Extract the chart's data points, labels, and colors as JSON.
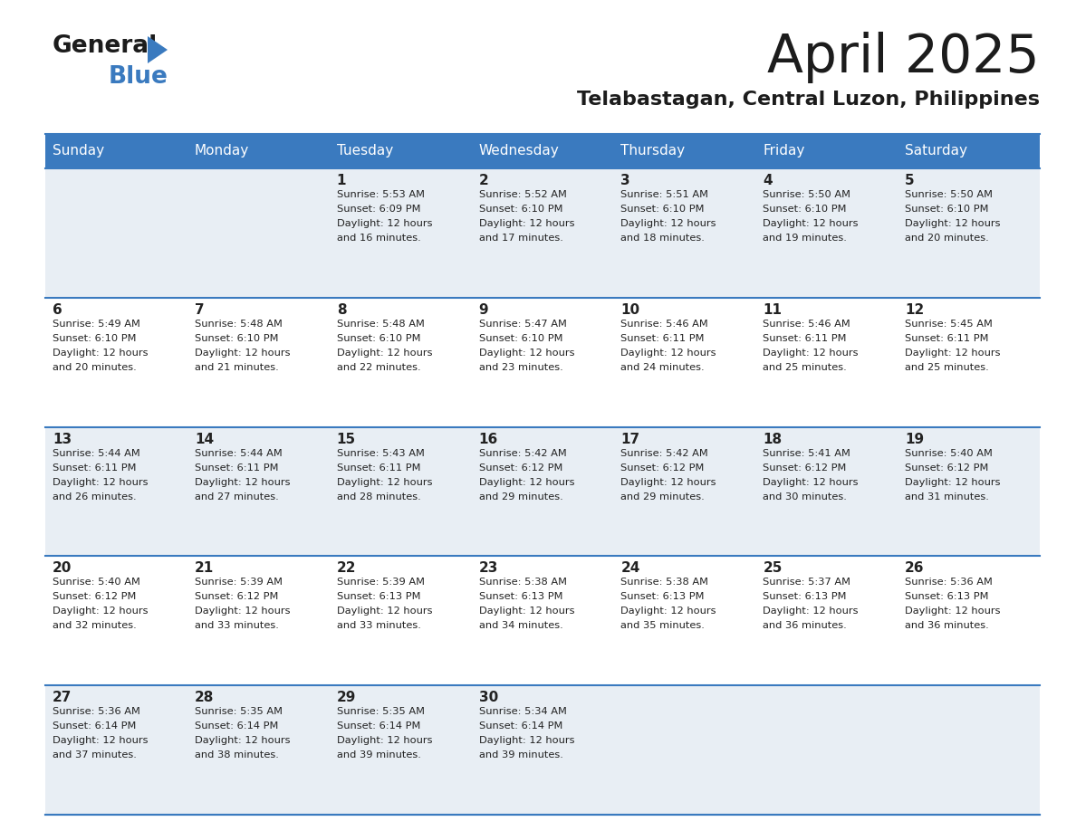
{
  "title": "April 2025",
  "subtitle": "Telabastagan, Central Luzon, Philippines",
  "header_color": "#3a7abf",
  "header_text_color": "#ffffff",
  "bg_color": "#ffffff",
  "cell_bg_even": "#e8eef4",
  "cell_bg_odd": "#ffffff",
  "grid_line_color": "#3a7abf",
  "text_color": "#222222",
  "days_of_week": [
    "Sunday",
    "Monday",
    "Tuesday",
    "Wednesday",
    "Thursday",
    "Friday",
    "Saturday"
  ],
  "weeks": [
    [
      {
        "day": "",
        "sunrise": "",
        "sunset": "",
        "daylight": ""
      },
      {
        "day": "",
        "sunrise": "",
        "sunset": "",
        "daylight": ""
      },
      {
        "day": "1",
        "sunrise": "Sunrise: 5:53 AM",
        "sunset": "Sunset: 6:09 PM",
        "daylight": "Daylight: 12 hours\nand 16 minutes."
      },
      {
        "day": "2",
        "sunrise": "Sunrise: 5:52 AM",
        "sunset": "Sunset: 6:10 PM",
        "daylight": "Daylight: 12 hours\nand 17 minutes."
      },
      {
        "day": "3",
        "sunrise": "Sunrise: 5:51 AM",
        "sunset": "Sunset: 6:10 PM",
        "daylight": "Daylight: 12 hours\nand 18 minutes."
      },
      {
        "day": "4",
        "sunrise": "Sunrise: 5:50 AM",
        "sunset": "Sunset: 6:10 PM",
        "daylight": "Daylight: 12 hours\nand 19 minutes."
      },
      {
        "day": "5",
        "sunrise": "Sunrise: 5:50 AM",
        "sunset": "Sunset: 6:10 PM",
        "daylight": "Daylight: 12 hours\nand 20 minutes."
      }
    ],
    [
      {
        "day": "6",
        "sunrise": "Sunrise: 5:49 AM",
        "sunset": "Sunset: 6:10 PM",
        "daylight": "Daylight: 12 hours\nand 20 minutes."
      },
      {
        "day": "7",
        "sunrise": "Sunrise: 5:48 AM",
        "sunset": "Sunset: 6:10 PM",
        "daylight": "Daylight: 12 hours\nand 21 minutes."
      },
      {
        "day": "8",
        "sunrise": "Sunrise: 5:48 AM",
        "sunset": "Sunset: 6:10 PM",
        "daylight": "Daylight: 12 hours\nand 22 minutes."
      },
      {
        "day": "9",
        "sunrise": "Sunrise: 5:47 AM",
        "sunset": "Sunset: 6:10 PM",
        "daylight": "Daylight: 12 hours\nand 23 minutes."
      },
      {
        "day": "10",
        "sunrise": "Sunrise: 5:46 AM",
        "sunset": "Sunset: 6:11 PM",
        "daylight": "Daylight: 12 hours\nand 24 minutes."
      },
      {
        "day": "11",
        "sunrise": "Sunrise: 5:46 AM",
        "sunset": "Sunset: 6:11 PM",
        "daylight": "Daylight: 12 hours\nand 25 minutes."
      },
      {
        "day": "12",
        "sunrise": "Sunrise: 5:45 AM",
        "sunset": "Sunset: 6:11 PM",
        "daylight": "Daylight: 12 hours\nand 25 minutes."
      }
    ],
    [
      {
        "day": "13",
        "sunrise": "Sunrise: 5:44 AM",
        "sunset": "Sunset: 6:11 PM",
        "daylight": "Daylight: 12 hours\nand 26 minutes."
      },
      {
        "day": "14",
        "sunrise": "Sunrise: 5:44 AM",
        "sunset": "Sunset: 6:11 PM",
        "daylight": "Daylight: 12 hours\nand 27 minutes."
      },
      {
        "day": "15",
        "sunrise": "Sunrise: 5:43 AM",
        "sunset": "Sunset: 6:11 PM",
        "daylight": "Daylight: 12 hours\nand 28 minutes."
      },
      {
        "day": "16",
        "sunrise": "Sunrise: 5:42 AM",
        "sunset": "Sunset: 6:12 PM",
        "daylight": "Daylight: 12 hours\nand 29 minutes."
      },
      {
        "day": "17",
        "sunrise": "Sunrise: 5:42 AM",
        "sunset": "Sunset: 6:12 PM",
        "daylight": "Daylight: 12 hours\nand 29 minutes."
      },
      {
        "day": "18",
        "sunrise": "Sunrise: 5:41 AM",
        "sunset": "Sunset: 6:12 PM",
        "daylight": "Daylight: 12 hours\nand 30 minutes."
      },
      {
        "day": "19",
        "sunrise": "Sunrise: 5:40 AM",
        "sunset": "Sunset: 6:12 PM",
        "daylight": "Daylight: 12 hours\nand 31 minutes."
      }
    ],
    [
      {
        "day": "20",
        "sunrise": "Sunrise: 5:40 AM",
        "sunset": "Sunset: 6:12 PM",
        "daylight": "Daylight: 12 hours\nand 32 minutes."
      },
      {
        "day": "21",
        "sunrise": "Sunrise: 5:39 AM",
        "sunset": "Sunset: 6:12 PM",
        "daylight": "Daylight: 12 hours\nand 33 minutes."
      },
      {
        "day": "22",
        "sunrise": "Sunrise: 5:39 AM",
        "sunset": "Sunset: 6:13 PM",
        "daylight": "Daylight: 12 hours\nand 33 minutes."
      },
      {
        "day": "23",
        "sunrise": "Sunrise: 5:38 AM",
        "sunset": "Sunset: 6:13 PM",
        "daylight": "Daylight: 12 hours\nand 34 minutes."
      },
      {
        "day": "24",
        "sunrise": "Sunrise: 5:38 AM",
        "sunset": "Sunset: 6:13 PM",
        "daylight": "Daylight: 12 hours\nand 35 minutes."
      },
      {
        "day": "25",
        "sunrise": "Sunrise: 5:37 AM",
        "sunset": "Sunset: 6:13 PM",
        "daylight": "Daylight: 12 hours\nand 36 minutes."
      },
      {
        "day": "26",
        "sunrise": "Sunrise: 5:36 AM",
        "sunset": "Sunset: 6:13 PM",
        "daylight": "Daylight: 12 hours\nand 36 minutes."
      }
    ],
    [
      {
        "day": "27",
        "sunrise": "Sunrise: 5:36 AM",
        "sunset": "Sunset: 6:14 PM",
        "daylight": "Daylight: 12 hours\nand 37 minutes."
      },
      {
        "day": "28",
        "sunrise": "Sunrise: 5:35 AM",
        "sunset": "Sunset: 6:14 PM",
        "daylight": "Daylight: 12 hours\nand 38 minutes."
      },
      {
        "day": "29",
        "sunrise": "Sunrise: 5:35 AM",
        "sunset": "Sunset: 6:14 PM",
        "daylight": "Daylight: 12 hours\nand 39 minutes."
      },
      {
        "day": "30",
        "sunrise": "Sunrise: 5:34 AM",
        "sunset": "Sunset: 6:14 PM",
        "daylight": "Daylight: 12 hours\nand 39 minutes."
      },
      {
        "day": "",
        "sunrise": "",
        "sunset": "",
        "daylight": ""
      },
      {
        "day": "",
        "sunrise": "",
        "sunset": "",
        "daylight": ""
      },
      {
        "day": "",
        "sunrise": "",
        "sunset": "",
        "daylight": ""
      }
    ]
  ]
}
